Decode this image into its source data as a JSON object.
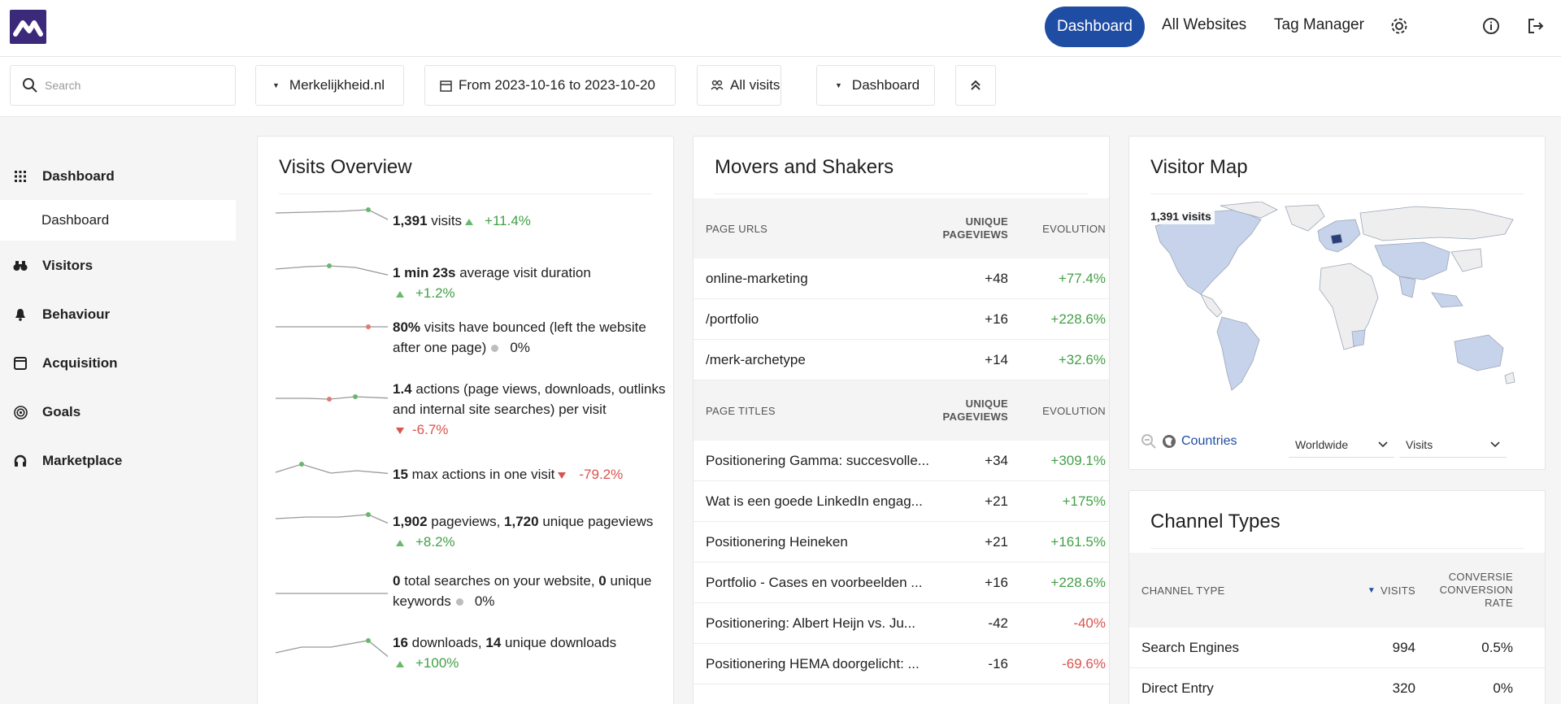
{
  "nav": {
    "items": [
      "Dashboard",
      "All Websites",
      "Tag Manager"
    ]
  },
  "toolbar": {
    "search_placeholder": "Search",
    "site": "Merkelijkheid.nl",
    "date_range": "From 2023-10-16 to 2023-10-20",
    "segment": "All visits",
    "dashboard": "Dashboard"
  },
  "sidebar": {
    "items": [
      "Dashboard",
      "Visitors",
      "Behaviour",
      "Acquisition",
      "Goals",
      "Marketplace"
    ],
    "sub_item": "Dashboard"
  },
  "visits_overview": {
    "title": "Visits Overview",
    "rows": [
      {
        "bold": "1,391",
        "text": " visits",
        "change": "+11.4%",
        "trend": "up"
      },
      {
        "bold": "1 min 23s",
        "text": " average visit duration",
        "change": "+1.2%",
        "trend": "up"
      },
      {
        "bold": "80%",
        "text": " visits have bounced (left the website after one page)",
        "change": "0%",
        "trend": "neutral"
      },
      {
        "bold": "1.4",
        "text": " actions (page views, downloads, outlinks and internal site searches) per visit",
        "change": "-6.7%",
        "trend": "down"
      },
      {
        "bold": "15",
        "text": " max actions in one visit",
        "change": "-79.2%",
        "trend": "down"
      },
      {
        "bold": "1,902",
        "text": " pageviews, ",
        "bold2": "1,720",
        "text2": " unique pageviews",
        "change": "+8.2%",
        "trend": "up"
      },
      {
        "bold": "0",
        "text": " total searches on your website, ",
        "bold2": "0",
        "text2": " unique keywords",
        "change": "0%",
        "trend": "neutral"
      },
      {
        "bold": "16",
        "text": " downloads, ",
        "bold2": "14",
        "text2": " unique downloads",
        "change": "+100%",
        "trend": "up"
      }
    ]
  },
  "movers": {
    "title": "Movers and Shakers",
    "urls_header": {
      "label": "PAGE URLS",
      "col2a": "UNIQUE",
      "col2b": "PAGEVIEWS",
      "col3": "EVOLUTION"
    },
    "urls": [
      {
        "label": "online-marketing",
        "value": "+48",
        "evolution": "+77.4%",
        "trend": "up"
      },
      {
        "label": "/portfolio",
        "value": "+16",
        "evolution": "+228.6%",
        "trend": "up"
      },
      {
        "label": "/merk-archetype",
        "value": "+14",
        "evolution": "+32.6%",
        "trend": "up"
      }
    ],
    "titles_header": {
      "label": "PAGE TITLES",
      "col2a": "UNIQUE",
      "col2b": "PAGEVIEWS",
      "col3": "EVOLUTION"
    },
    "titles": [
      {
        "label": "Positionering Gamma: succesvolle...",
        "value": "+34",
        "evolution": "+309.1%",
        "trend": "up"
      },
      {
        "label": "Wat is een goede LinkedIn engag...",
        "value": "+21",
        "evolution": "+175%",
        "trend": "up"
      },
      {
        "label": "Positionering Heineken",
        "value": "+21",
        "evolution": "+161.5%",
        "trend": "up"
      },
      {
        "label": "Portfolio - Cases en voorbeelden ...",
        "value": "+16",
        "evolution": "+228.6%",
        "trend": "up"
      },
      {
        "label": "Positionering: Albert Heijn vs. Ju...",
        "value": "-42",
        "evolution": "-40%",
        "trend": "down"
      },
      {
        "label": "Positionering HEMA doorgelicht: ...",
        "value": "-16",
        "evolution": "-69.6%",
        "trend": "down"
      }
    ]
  },
  "visitor_map": {
    "title": "Visitor Map",
    "visits_label": "1,391 visits",
    "countries_link": "Countries",
    "region_select": "Worldwide",
    "metric_select": "Visits"
  },
  "channel_types": {
    "title": "Channel Types",
    "header": {
      "label": "CHANNEL TYPE",
      "visits": "VISITS",
      "conv_a": "CONVERSIE",
      "conv_b": "CONVERSION",
      "conv_c": "RATE"
    },
    "rows": [
      {
        "label": "Search Engines",
        "visits": "994",
        "rate": "0.5%"
      },
      {
        "label": "Direct Entry",
        "visits": "320",
        "rate": "0%"
      }
    ]
  }
}
